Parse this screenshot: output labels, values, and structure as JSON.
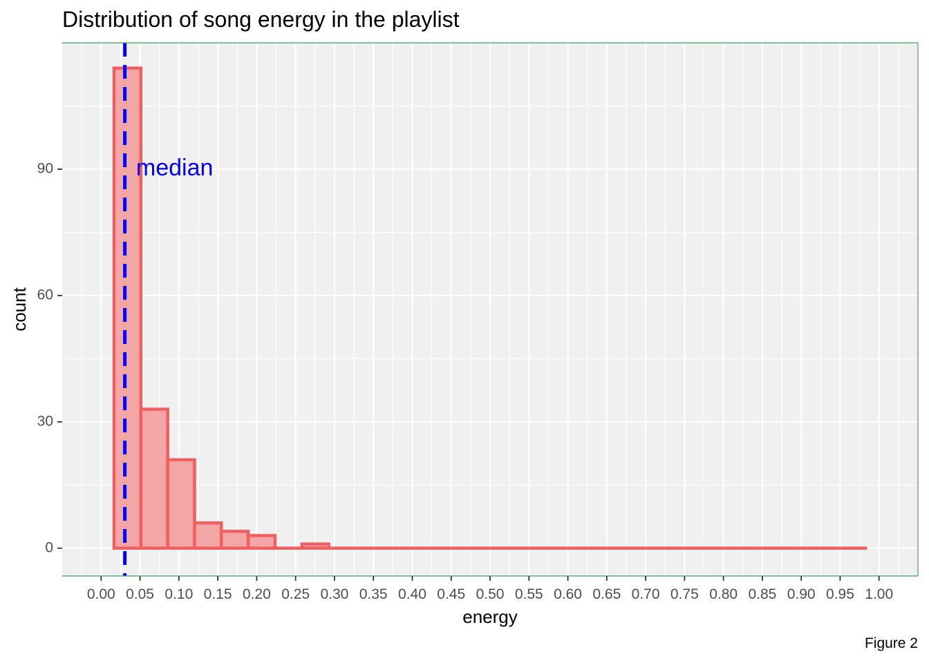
{
  "chart_data": {
    "type": "bar",
    "title": "Distribution of song energy in the playlist",
    "xlabel": "energy",
    "ylabel": "count",
    "caption": "Figure 2",
    "xlim": [
      -0.05,
      1.05
    ],
    "ylim": [
      -6.6,
      120
    ],
    "x_ticks": [
      "0.00",
      "0.05",
      "0.10",
      "0.15",
      "0.20",
      "0.25",
      "0.30",
      "0.35",
      "0.40",
      "0.45",
      "0.50",
      "0.55",
      "0.60",
      "0.65",
      "0.70",
      "0.75",
      "0.80",
      "0.85",
      "0.90",
      "0.95",
      "1.00"
    ],
    "y_ticks": [
      0,
      30,
      60,
      90
    ],
    "bin_edges": [
      0.0166,
      0.0511,
      0.0856,
      0.1201,
      0.1546,
      0.1891,
      0.2236,
      0.2581,
      0.2926,
      0.3271,
      0.3616,
      0.3961,
      0.4306,
      0.4651,
      0.4996,
      0.5341,
      0.5686,
      0.6031,
      0.6376,
      0.6721,
      0.7066,
      0.7411,
      0.7756,
      0.8101,
      0.8446,
      0.8791,
      0.9136,
      0.9481,
      0.9826
    ],
    "counts": [
      114,
      33,
      21,
      6,
      4,
      3,
      0,
      1,
      0,
      0,
      0,
      0,
      0,
      0,
      0,
      0,
      0,
      0,
      0,
      0,
      0,
      0,
      0,
      0,
      0,
      0,
      0,
      0
    ],
    "median": 0.0305,
    "annotation": {
      "text": "median",
      "x": 0.045,
      "y": 90
    },
    "grid": true,
    "colors": {
      "panel": "#f0f0f0",
      "grid": "#ffffff",
      "bar_fill": "#f4a6a6",
      "bar_stroke": "#f06060",
      "median_line": "#0000ff",
      "annotation_text": "#0000ff",
      "border": "#3aa35a"
    }
  }
}
